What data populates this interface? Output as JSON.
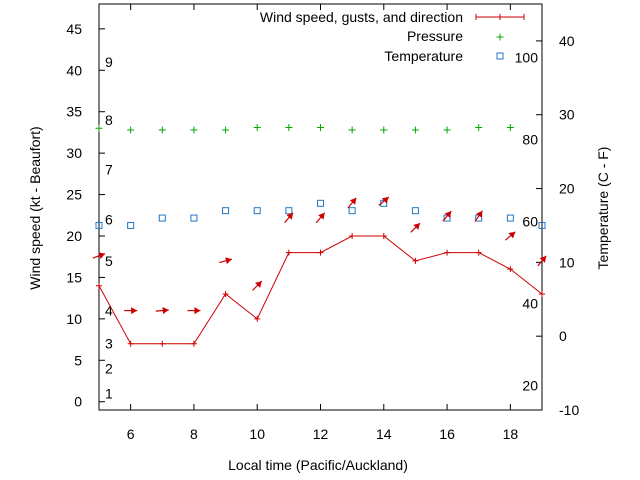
{
  "chart_data": {
    "type": "line",
    "xlabel": "Local time (Pacific/Auckland)",
    "ylabel_left": "Wind speed (kt - Beaufort)",
    "ylabel_right": "Temperature (C - F)",
    "xlim": [
      5,
      19
    ],
    "ylim_left": [
      -1,
      48
    ],
    "ylim_right": [
      -10,
      45
    ],
    "x_ticks": [
      6,
      8,
      10,
      12,
      14,
      16,
      18
    ],
    "y_left_ticks": [
      0,
      5,
      10,
      15,
      20,
      25,
      30,
      35,
      40,
      45
    ],
    "y_right_ticks": [
      -10,
      0,
      10,
      20,
      30,
      40
    ],
    "beaufort_labels": [
      {
        "text": "1",
        "kt": 1
      },
      {
        "text": "2",
        "kt": 4
      },
      {
        "text": "3",
        "kt": 7
      },
      {
        "text": "4",
        "kt": 11
      },
      {
        "text": "5",
        "kt": 17
      },
      {
        "text": "6",
        "kt": 22
      },
      {
        "text": "7",
        "kt": 28
      },
      {
        "text": "8",
        "kt": 34
      },
      {
        "text": "9",
        "kt": 41
      }
    ],
    "fahrenheit_labels": [
      {
        "text": "20",
        "c": -6.67
      },
      {
        "text": "40",
        "c": 4.44
      },
      {
        "text": "60",
        "c": 15.56
      },
      {
        "text": "80",
        "c": 26.67
      },
      {
        "text": "100",
        "c": 37.78
      }
    ],
    "legend": {
      "wind": "Wind speed, gusts, and direction",
      "pressure": "Pressure",
      "temperature": "Temperature",
      "placement": "top-right"
    },
    "series": [
      {
        "name": "Wind speed, gusts, and direction",
        "color": "#cc0000",
        "x": [
          5,
          6,
          7,
          8,
          9,
          10,
          11,
          12,
          13,
          14,
          15,
          16,
          17,
          18,
          19
        ],
        "values": [
          14,
          7,
          7,
          7,
          13,
          10,
          18,
          18,
          20,
          20,
          17,
          18,
          18,
          16,
          13
        ]
      },
      {
        "name": "Pressure",
        "color": "#00aa00",
        "axis": "left",
        "x": [
          5,
          6,
          7,
          8,
          9,
          10,
          11,
          12,
          13,
          14,
          15,
          16,
          17,
          18
        ],
        "values": [
          33,
          32.8,
          32.8,
          32.8,
          32.8,
          33.1,
          33.1,
          33.1,
          32.8,
          32.8,
          32.8,
          32.8,
          33.1,
          33.1
        ]
      },
      {
        "name": "Temperature",
        "color": "#1e78c8",
        "axis": "right",
        "x": [
          5,
          6,
          7,
          8,
          9,
          10,
          11,
          12,
          13,
          14,
          15,
          16,
          17,
          18,
          19
        ],
        "values": [
          15,
          15,
          16,
          16,
          17,
          17,
          17,
          18,
          17,
          18,
          17,
          16,
          16,
          16,
          15
        ]
      }
    ],
    "wind_arrows": {
      "note": "direction glyphs (degrees, screen angle, 0 = pointing right, positive = counter-clockwise)",
      "arrows": [
        {
          "x": 5.0,
          "kt": 17.6,
          "angle": 20
        },
        {
          "x": 6.0,
          "kt": 11,
          "angle": 0
        },
        {
          "x": 7.0,
          "kt": 11,
          "angle": 5
        },
        {
          "x": 8.0,
          "kt": 11,
          "angle": 0
        },
        {
          "x": 9.0,
          "kt": 17,
          "angle": 15
        },
        {
          "x": 10.0,
          "kt": 14,
          "angle": 45
        },
        {
          "x": 11.0,
          "kt": 22.2,
          "angle": 50
        },
        {
          "x": 12.0,
          "kt": 22.2,
          "angle": 50
        },
        {
          "x": 13.0,
          "kt": 24,
          "angle": 50
        },
        {
          "x": 14.0,
          "kt": 24.2,
          "angle": 40
        },
        {
          "x": 15.0,
          "kt": 21,
          "angle": 45
        },
        {
          "x": 16.0,
          "kt": 22.4,
          "angle": 50
        },
        {
          "x": 17.0,
          "kt": 22.4,
          "angle": 55
        },
        {
          "x": 18.0,
          "kt": 20,
          "angle": 40
        },
        {
          "x": 19.0,
          "kt": 17,
          "angle": 50
        }
      ]
    }
  }
}
